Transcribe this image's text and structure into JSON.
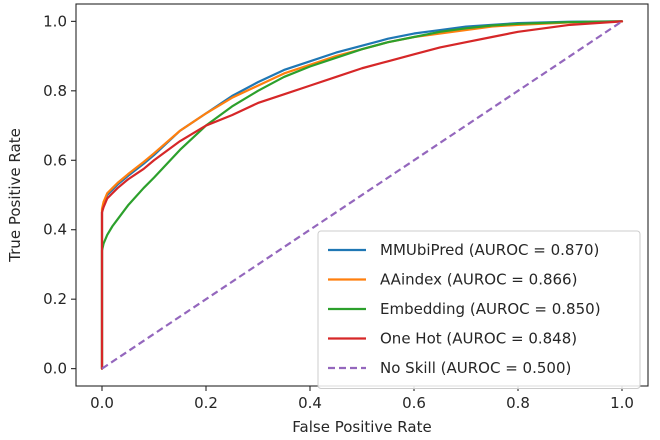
{
  "chart_data": {
    "type": "line",
    "title": "",
    "xlabel": "False Positive Rate",
    "ylabel": "True Positive Rate",
    "xlim": [
      -0.05,
      1.05
    ],
    "ylim": [
      -0.05,
      1.05
    ],
    "xticks": [
      0.0,
      0.2,
      0.4,
      0.6,
      0.8,
      1.0
    ],
    "yticks": [
      0.0,
      0.2,
      0.4,
      0.6,
      0.8,
      1.0
    ],
    "tick_labels_x": [
      "0.0",
      "0.2",
      "0.4",
      "0.6",
      "0.8",
      "1.0"
    ],
    "tick_labels_y": [
      "0.0",
      "0.2",
      "0.4",
      "0.6",
      "0.8",
      "1.0"
    ],
    "grid": false,
    "legend_position": "lower-right",
    "series": [
      {
        "name": "MMUbiPred (AUROC = 0.870)",
        "color": "#1f77b4",
        "style": "solid",
        "x": [
          0,
          0,
          0.003,
          0.01,
          0.02,
          0.03,
          0.05,
          0.08,
          0.1,
          0.15,
          0.2,
          0.25,
          0.3,
          0.35,
          0.4,
          0.45,
          0.5,
          0.55,
          0.6,
          0.65,
          0.7,
          0.75,
          0.8,
          0.9,
          1.0
        ],
        "y": [
          0,
          0.45,
          0.475,
          0.5,
          0.515,
          0.53,
          0.555,
          0.59,
          0.615,
          0.685,
          0.735,
          0.785,
          0.825,
          0.86,
          0.885,
          0.91,
          0.93,
          0.95,
          0.965,
          0.975,
          0.985,
          0.99,
          0.995,
          0.999,
          1.0
        ]
      },
      {
        "name": "AAindex (AUROC = 0.866)",
        "color": "#ff7f0e",
        "style": "solid",
        "x": [
          0,
          0,
          0.003,
          0.01,
          0.02,
          0.03,
          0.05,
          0.08,
          0.1,
          0.15,
          0.2,
          0.25,
          0.3,
          0.35,
          0.4,
          0.45,
          0.5,
          0.55,
          0.6,
          0.65,
          0.7,
          0.75,
          0.8,
          0.9,
          1.0
        ],
        "y": [
          0,
          0.46,
          0.48,
          0.505,
          0.52,
          0.535,
          0.56,
          0.595,
          0.62,
          0.685,
          0.735,
          0.78,
          0.815,
          0.85,
          0.875,
          0.9,
          0.92,
          0.94,
          0.955,
          0.965,
          0.975,
          0.985,
          0.99,
          0.997,
          1.0
        ]
      },
      {
        "name": "Embedding (AUROC = 0.850)",
        "color": "#2ca02c",
        "style": "solid",
        "x": [
          0,
          0,
          0.003,
          0.01,
          0.02,
          0.03,
          0.05,
          0.08,
          0.1,
          0.15,
          0.2,
          0.25,
          0.3,
          0.35,
          0.4,
          0.45,
          0.5,
          0.55,
          0.6,
          0.65,
          0.7,
          0.75,
          0.8,
          0.9,
          1.0
        ],
        "y": [
          0,
          0.34,
          0.36,
          0.385,
          0.41,
          0.43,
          0.47,
          0.52,
          0.55,
          0.63,
          0.7,
          0.755,
          0.8,
          0.84,
          0.87,
          0.895,
          0.92,
          0.94,
          0.955,
          0.97,
          0.98,
          0.988,
          0.993,
          0.998,
          1.0
        ]
      },
      {
        "name": "One Hot (AUROC = 0.848)",
        "color": "#d62728",
        "style": "solid",
        "x": [
          0,
          0,
          0.003,
          0.01,
          0.02,
          0.03,
          0.05,
          0.08,
          0.1,
          0.15,
          0.2,
          0.25,
          0.3,
          0.35,
          0.4,
          0.45,
          0.5,
          0.55,
          0.6,
          0.65,
          0.7,
          0.75,
          0.8,
          0.9,
          1.0
        ],
        "y": [
          0,
          0.45,
          0.465,
          0.49,
          0.505,
          0.52,
          0.545,
          0.575,
          0.6,
          0.655,
          0.7,
          0.73,
          0.765,
          0.79,
          0.815,
          0.84,
          0.865,
          0.885,
          0.905,
          0.925,
          0.94,
          0.955,
          0.97,
          0.99,
          1.0
        ]
      },
      {
        "name": "No Skill (AUROC = 0.500)",
        "color": "#9467bd",
        "style": "dashed",
        "x": [
          0,
          1
        ],
        "y": [
          0,
          1
        ]
      }
    ]
  }
}
